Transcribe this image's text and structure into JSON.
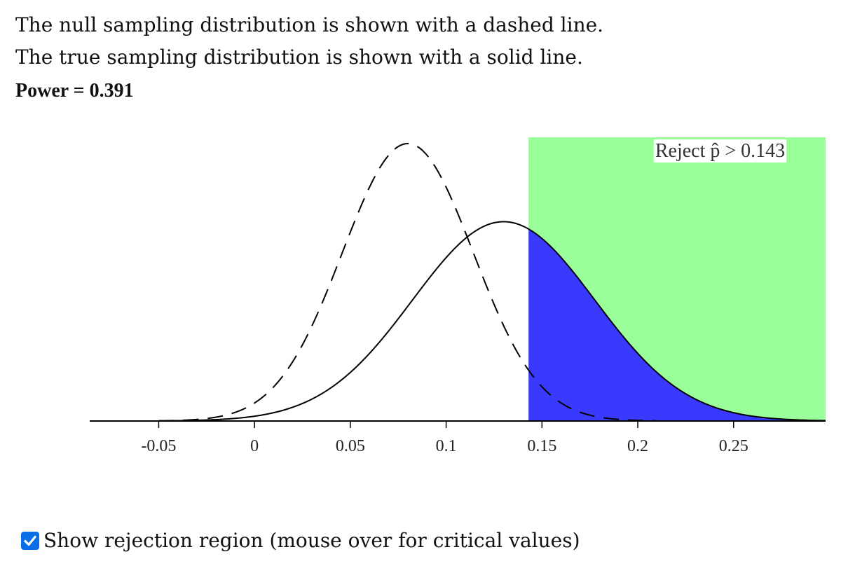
{
  "header": {
    "null_text": "The null sampling distribution is shown with a dashed line.",
    "true_text": "The true sampling distribution is shown with a solid line.",
    "power_text": "Power = 0.391"
  },
  "colors": {
    "rejection_fill": "#9aff9a",
    "power_fill": "#3a3aff",
    "curve": "#000000"
  },
  "chart_data": {
    "type": "line",
    "title": "",
    "xlabel": "",
    "ylabel": "",
    "xlim": [
      -0.086,
      0.298
    ],
    "ticks": [
      {
        "value": -0.05,
        "label": "-0.05"
      },
      {
        "value": 0,
        "label": "0"
      },
      {
        "value": 0.05,
        "label": "0.05"
      },
      {
        "value": 0.1,
        "label": "0.1"
      },
      {
        "value": 0.15,
        "label": "0.15"
      },
      {
        "value": 0.2,
        "label": "0.2"
      },
      {
        "value": 0.25,
        "label": "0.25"
      }
    ],
    "series": [
      {
        "name": "null sampling distribution",
        "style": "dashed",
        "mean": 0.08,
        "sd": 0.0342
      },
      {
        "name": "true sampling distribution",
        "style": "solid",
        "mean": 0.13,
        "sd": 0.0476
      }
    ],
    "critical_value": 0.143,
    "power": 0.391,
    "rejection_label": "Reject p̂ > 0.143"
  },
  "controls": {
    "checkbox_checked": true,
    "checkbox_label": "Show rejection region (mouse over for critical values)"
  }
}
